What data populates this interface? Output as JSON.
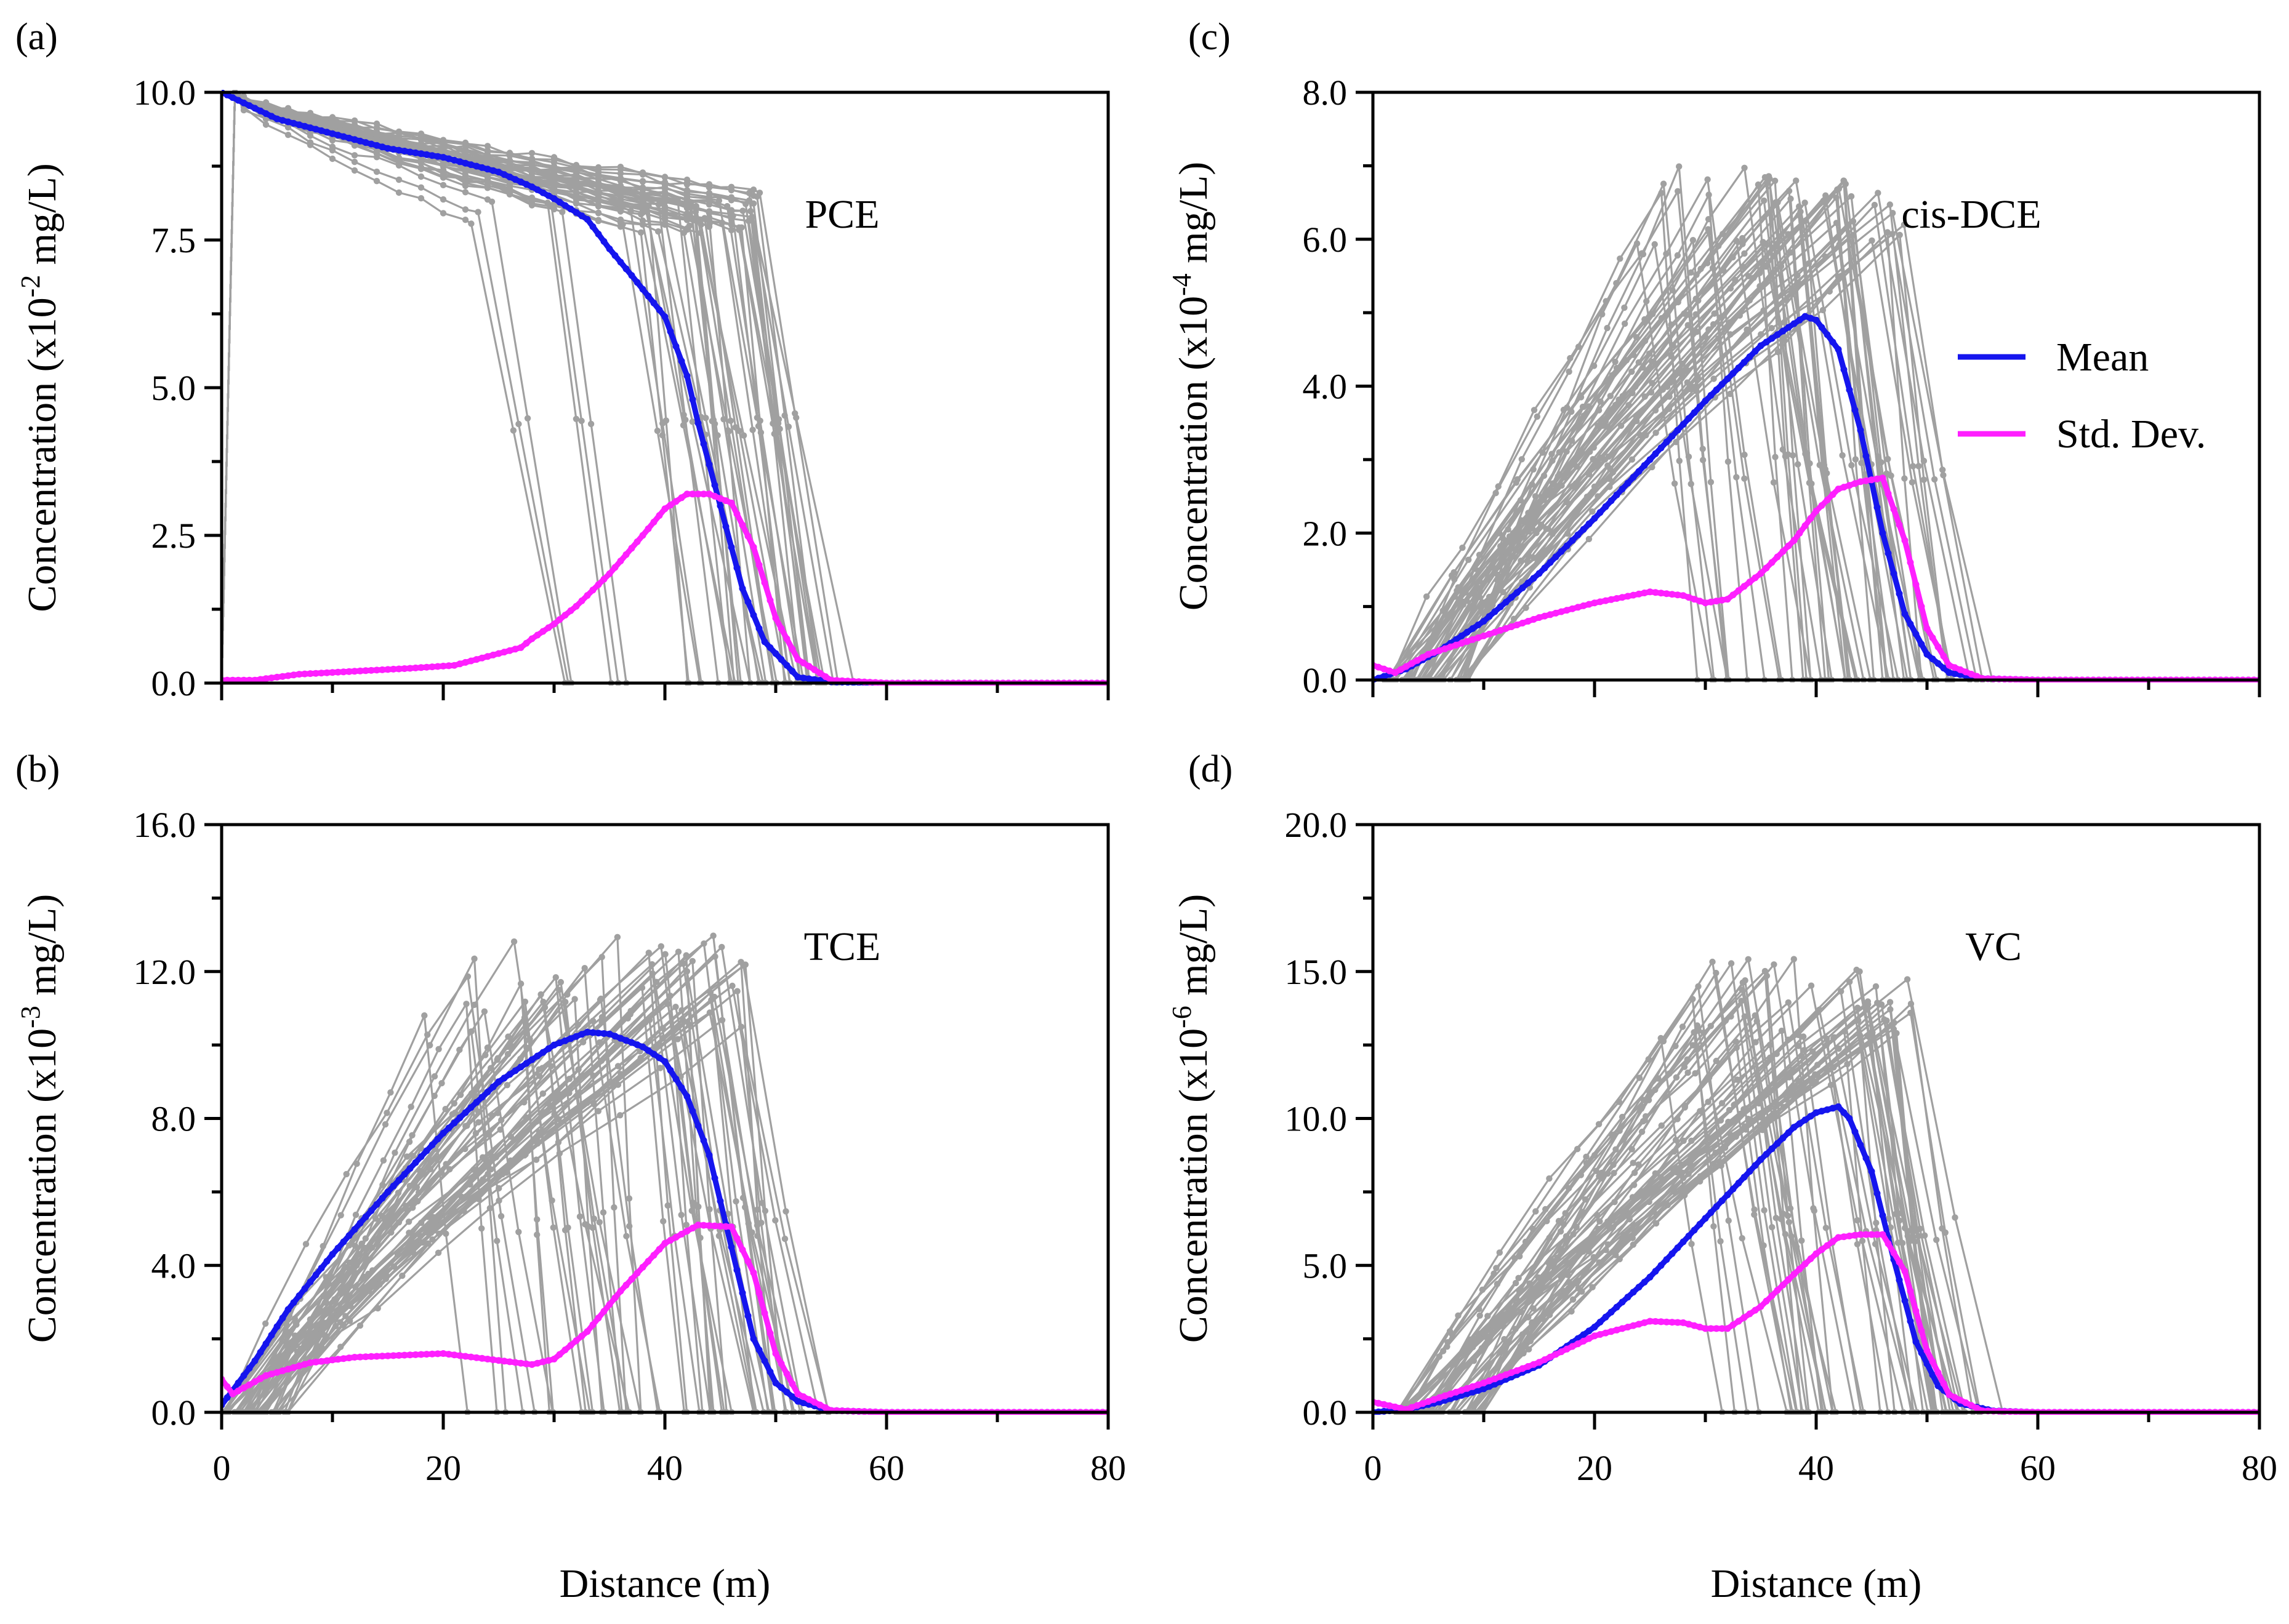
{
  "figure": {
    "xlabel": "Distance (m)",
    "legend": {
      "mean_label": "Mean",
      "std_label": "Std. Dev.",
      "placement": "right-middle of panel (c)"
    },
    "colors": {
      "realization": "#a0a0a0",
      "mean": "#1515ee",
      "std": "#ff1fff",
      "axis": "#000000"
    }
  },
  "chart_data": [
    {
      "id": "a",
      "type": "line",
      "panel_label": "(a)",
      "species": "PCE",
      "ylabel_pre": "Concentration (x10",
      "ylabel_exp": "-2",
      "ylabel_post": " mg/L)",
      "xlim": [
        0,
        80
      ],
      "ylim": [
        0,
        10
      ],
      "xticks": [
        "0",
        "20",
        "40",
        "60",
        "80"
      ],
      "show_xtick_labels": false,
      "yticks": [
        "0.0",
        "2.5",
        "5.0",
        "7.5",
        "10.0"
      ],
      "mean": {
        "x": [
          0,
          5,
          10,
          15,
          20,
          25,
          28,
          30,
          33,
          35,
          37,
          40,
          42,
          43,
          45,
          47,
          49,
          52,
          55,
          60,
          80
        ],
        "y": [
          10,
          9.55,
          9.3,
          9.05,
          8.9,
          8.65,
          8.4,
          8.2,
          7.85,
          7.35,
          6.9,
          6.2,
          5.2,
          4.4,
          3.0,
          1.6,
          0.7,
          0.1,
          0.02,
          0,
          0
        ]
      },
      "std": {
        "x": [
          0,
          3,
          7,
          12,
          17,
          21,
          25,
          27,
          28,
          30,
          32,
          35,
          38,
          40,
          42,
          44,
          46,
          48,
          50,
          52,
          55,
          60,
          80
        ],
        "y": [
          0.05,
          0.05,
          0.15,
          0.2,
          0.25,
          0.3,
          0.5,
          0.6,
          0.75,
          1.0,
          1.3,
          1.85,
          2.5,
          2.95,
          3.2,
          3.2,
          3.05,
          2.3,
          1.1,
          0.4,
          0.05,
          0,
          0
        ]
      },
      "realizations": {
        "generator": "pce-front",
        "count": 45,
        "note": "grey Monte Carlo realizations"
      }
    },
    {
      "id": "b",
      "type": "line",
      "panel_label": "(b)",
      "species": "TCE",
      "ylabel_pre": "Concentration (x10",
      "ylabel_exp": "-3",
      "ylabel_post": " mg/L)",
      "xlim": [
        0,
        80
      ],
      "ylim": [
        0,
        16
      ],
      "xticks": [
        "0",
        "20",
        "40",
        "60",
        "80"
      ],
      "show_xtick_labels": true,
      "yticks": [
        "0.0",
        "4.0",
        "8.0",
        "12.0",
        "16.0"
      ],
      "mean": {
        "x": [
          0,
          3,
          6,
          10,
          15,
          20,
          25,
          30,
          33,
          35,
          38,
          40,
          42,
          44,
          46,
          48,
          50,
          52,
          55,
          60,
          80
        ],
        "y": [
          0.2,
          1.4,
          2.8,
          4.3,
          6.0,
          7.6,
          9.0,
          10.0,
          10.35,
          10.3,
          9.95,
          9.55,
          8.6,
          7.0,
          4.5,
          2.0,
          0.8,
          0.3,
          0.05,
          0,
          0
        ]
      },
      "std": {
        "x": [
          0,
          1,
          4,
          8,
          12,
          16,
          20,
          24,
          28,
          30,
          33,
          36,
          40,
          43,
          46,
          48,
          50,
          52,
          55,
          60,
          80
        ],
        "y": [
          0.9,
          0.5,
          1.0,
          1.35,
          1.5,
          1.55,
          1.6,
          1.45,
          1.3,
          1.45,
          2.2,
          3.3,
          4.6,
          5.1,
          5.05,
          3.8,
          1.6,
          0.5,
          0.05,
          0,
          0
        ]
      },
      "realizations": {
        "generator": "rise-fall",
        "count": 55,
        "seed": 11,
        "peak": [
          10.3,
          13.0
        ],
        "start": [
          0,
          6
        ],
        "peak_x": [
          18,
          48
        ],
        "drop_x": [
          2,
          8
        ],
        "note": "grey Monte Carlo realizations"
      }
    },
    {
      "id": "c",
      "type": "line",
      "panel_label": "(c)",
      "species": "cis-DCE",
      "ylabel_pre": "Concentration (x10",
      "ylabel_exp": "-4",
      "ylabel_post": " mg/L)",
      "xlim": [
        0,
        80
      ],
      "ylim": [
        0,
        8
      ],
      "xticks": [
        "0",
        "20",
        "40",
        "60",
        "80"
      ],
      "show_xtick_labels": false,
      "yticks": [
        "0.0",
        "2.0",
        "4.0",
        "6.0",
        "8.0"
      ],
      "mean": {
        "x": [
          0,
          3,
          6,
          10,
          15,
          20,
          25,
          30,
          35,
          38,
          39,
          40,
          42,
          44,
          46,
          48,
          50,
          52,
          55,
          60,
          80
        ],
        "y": [
          0.0,
          0.15,
          0.4,
          0.8,
          1.45,
          2.2,
          3.0,
          3.8,
          4.55,
          4.85,
          4.95,
          4.9,
          4.5,
          3.4,
          2.0,
          0.9,
          0.35,
          0.1,
          0.02,
          0,
          0
        ]
      },
      "std": {
        "x": [
          0,
          2,
          5,
          10,
          15,
          20,
          25,
          28,
          30,
          32,
          35,
          38,
          40,
          42,
          44,
          46,
          48,
          50,
          52,
          55,
          60,
          80
        ],
        "y": [
          0.2,
          0.1,
          0.35,
          0.6,
          0.85,
          1.05,
          1.2,
          1.15,
          1.05,
          1.1,
          1.45,
          1.9,
          2.3,
          2.6,
          2.7,
          2.75,
          1.9,
          0.7,
          0.2,
          0.02,
          0,
          0
        ]
      },
      "realizations": {
        "generator": "rise-fall",
        "count": 55,
        "seed": 23,
        "peak": [
          5.9,
          7.0
        ],
        "start": [
          1,
          9
        ],
        "peak_x": [
          20,
          48
        ],
        "drop_x": [
          3,
          9
        ],
        "note": "grey Monte Carlo realizations"
      }
    },
    {
      "id": "d",
      "type": "line",
      "panel_label": "(d)",
      "species": "VC",
      "ylabel_pre": "Concentration (x10",
      "ylabel_exp": "-6",
      "ylabel_post": " mg/L)",
      "xlim": [
        0,
        80
      ],
      "ylim": [
        0,
        20
      ],
      "xticks": [
        "0",
        "20",
        "40",
        "60",
        "80"
      ],
      "show_xtick_labels": true,
      "yticks": [
        "0.0",
        "5.0",
        "10.0",
        "15.0",
        "20.0"
      ],
      "mean": {
        "x": [
          0,
          3,
          6,
          10,
          15,
          20,
          25,
          30,
          35,
          38,
          40,
          42,
          43,
          45,
          47,
          49,
          51,
          53,
          56,
          60,
          80
        ],
        "y": [
          0,
          0.1,
          0.35,
          0.8,
          1.6,
          2.9,
          4.6,
          6.6,
          8.6,
          9.7,
          10.2,
          10.4,
          10.0,
          8.2,
          5.2,
          2.4,
          0.9,
          0.3,
          0.05,
          0,
          0
        ]
      },
      "std": {
        "x": [
          0,
          3,
          6,
          10,
          15,
          20,
          25,
          28,
          30,
          32,
          35,
          38,
          40,
          42,
          44,
          46,
          48,
          50,
          52,
          55,
          60,
          80
        ],
        "y": [
          0.35,
          0.1,
          0.5,
          1.0,
          1.7,
          2.6,
          3.1,
          3.05,
          2.85,
          2.85,
          3.6,
          4.7,
          5.4,
          5.95,
          6.05,
          6.05,
          4.8,
          2.1,
          0.6,
          0.05,
          0,
          0
        ]
      },
      "realizations": {
        "generator": "rise-fall",
        "count": 55,
        "seed": 37,
        "peak": [
          12.5,
          15.5
        ],
        "start": [
          2,
          10
        ],
        "peak_x": [
          22,
          49
        ],
        "drop_x": [
          3,
          9
        ],
        "note": "grey Monte Carlo realizations"
      }
    }
  ]
}
